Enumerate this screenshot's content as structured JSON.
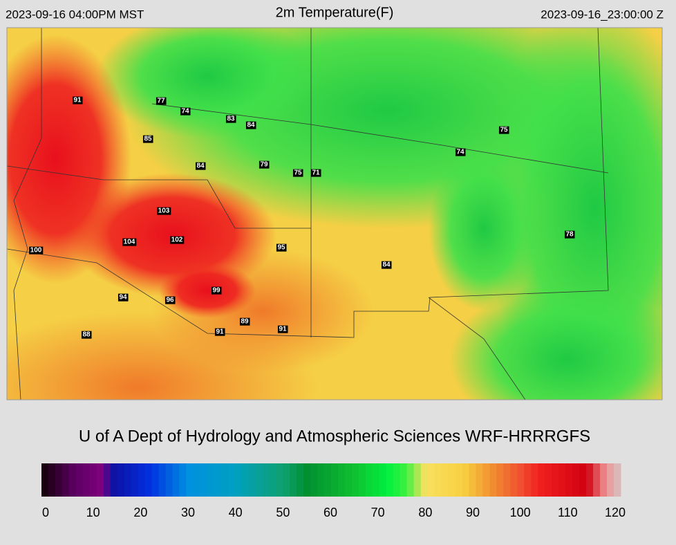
{
  "header": {
    "left": "2023-09-16 04:00PM MST",
    "title": "2m Temperature(F)",
    "right": "2023-09-16_23:00:00 Z"
  },
  "stations": [
    91,
    77,
    74,
    83,
    84,
    85,
    84,
    79,
    75,
    71,
    74,
    75,
    103,
    104,
    102,
    100,
    95,
    84,
    78,
    99,
    94,
    96,
    89,
    91,
    91,
    88
  ],
  "credit": "U of A Dept of Hydrology and Atmospheric Sciences WRF-HRRRGFS",
  "colorbar": {
    "range": [
      0,
      120
    ],
    "ticks": [
      0,
      10,
      20,
      30,
      40,
      50,
      60,
      70,
      80,
      90,
      100,
      110,
      120
    ]
  }
}
